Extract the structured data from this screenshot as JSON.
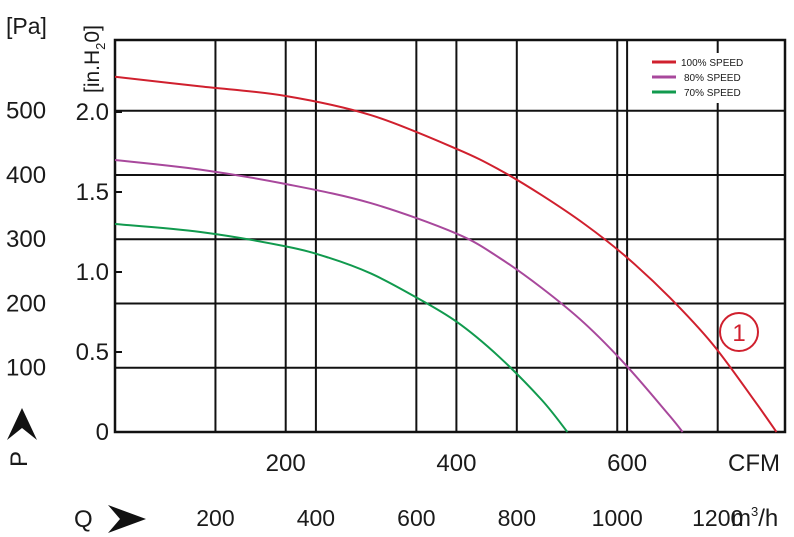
{
  "chart_data": {
    "type": "line",
    "title": "",
    "curve_label": "1",
    "units": {
      "pa": "[Pa]",
      "inh2o_prefix": "[in.H",
      "inh2o_sub": "2",
      "inh2o_suffix": "0]",
      "cfm": "CFM",
      "m3h_prefix": "m",
      "m3h_sup": "3",
      "m3h_suffix": "/h"
    },
    "axis_symbols": {
      "p": "P",
      "q": "Q"
    },
    "x_cfm": {
      "range": [
        0,
        785
      ],
      "ticks": [
        200,
        400,
        600
      ]
    },
    "x_m3h": {
      "range": [
        0,
        1334
      ],
      "ticks": [
        200,
        400,
        600,
        800,
        1000,
        1200
      ]
    },
    "y_pa": {
      "range": [
        0,
        610
      ],
      "ticks": [
        100,
        200,
        300,
        400,
        500
      ]
    },
    "y_inh2o": {
      "range": [
        0,
        2.45
      ],
      "ticks": [
        0,
        0.5,
        1.0,
        1.5,
        2.0
      ]
    },
    "grid": true,
    "legend_position": "top-right",
    "series": [
      {
        "name": "100% SPEED",
        "color": "#d0202e",
        "points": [
          [
            0,
            2.22
          ],
          [
            100,
            2.16
          ],
          [
            200,
            2.1
          ],
          [
            300,
            1.98
          ],
          [
            400,
            1.77
          ],
          [
            450,
            1.64
          ],
          [
            500,
            1.48
          ],
          [
            550,
            1.3
          ],
          [
            600,
            1.09
          ],
          [
            650,
            0.84
          ],
          [
            700,
            0.55
          ],
          [
            750,
            0.19
          ],
          [
            775,
            0.0
          ]
        ]
      },
      {
        "name": "80% SPEED",
        "color": "#a8489c",
        "points": [
          [
            0,
            1.7
          ],
          [
            100,
            1.64
          ],
          [
            200,
            1.55
          ],
          [
            300,
            1.43
          ],
          [
            400,
            1.24
          ],
          [
            450,
            1.09
          ],
          [
            500,
            0.9
          ],
          [
            550,
            0.68
          ],
          [
            600,
            0.41
          ],
          [
            650,
            0.1
          ],
          [
            665,
            0.0
          ]
        ]
      },
      {
        "name": "70% SPEED",
        "color": "#119a4e",
        "points": [
          [
            0,
            1.3
          ],
          [
            100,
            1.25
          ],
          [
            200,
            1.16
          ],
          [
            250,
            1.09
          ],
          [
            300,
            0.99
          ],
          [
            350,
            0.85
          ],
          [
            400,
            0.69
          ],
          [
            450,
            0.47
          ],
          [
            500,
            0.2
          ],
          [
            530,
            0.0
          ]
        ]
      }
    ]
  }
}
